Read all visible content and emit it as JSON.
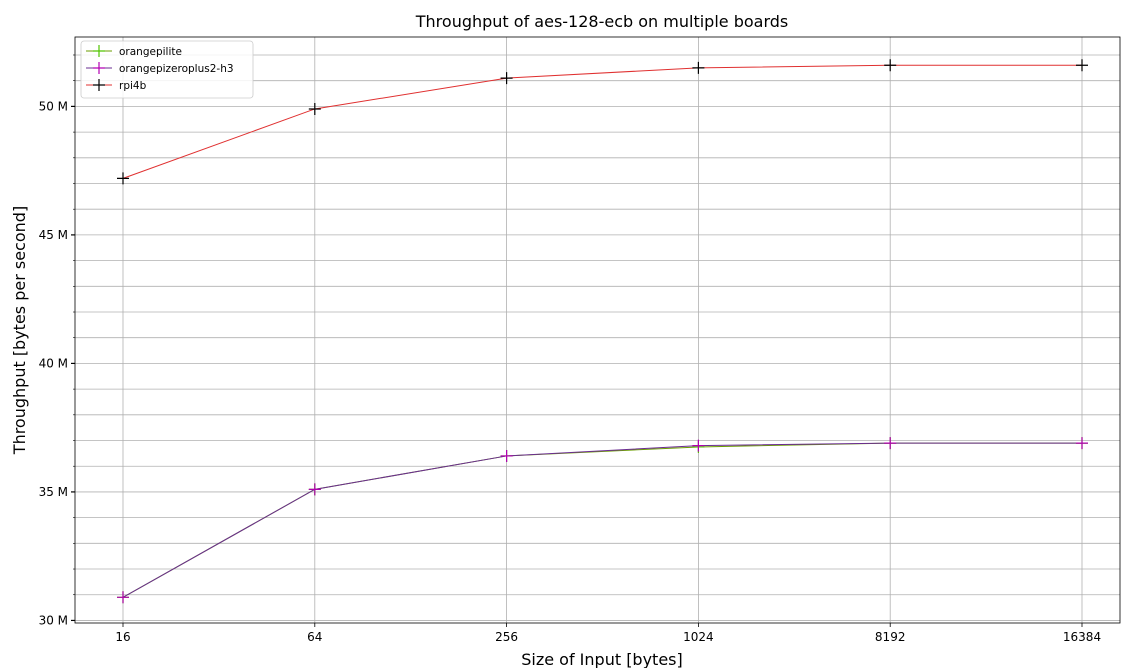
{
  "chart_data": {
    "type": "line",
    "title": "Throughput of aes-128-ecb on multiple boards",
    "xlabel": "Size of Input [bytes]",
    "ylabel": "Throughput [bytes per second]",
    "categories": [
      "16",
      "64",
      "256",
      "1024",
      "8192",
      "16384"
    ],
    "ylim": [
      29900000,
      52700000
    ],
    "yticks": [
      30000000,
      35000000,
      40000000,
      45000000,
      50000000
    ],
    "ytick_labels": [
      "30 M",
      "35 M",
      "40 M",
      "45 M",
      "50 M"
    ],
    "yminor_step": 1000000,
    "grid": true,
    "legend_position": "top-left",
    "series": [
      {
        "name": "orangepilite",
        "color": "#6b9e00",
        "marker_color": "#52c400",
        "values": [
          30900000,
          35100000,
          36400000,
          36750000,
          36900000,
          36900000
        ]
      },
      {
        "name": "orangepizeroplus2-h3",
        "color": "#6a2c91",
        "marker_color": "#b300b3",
        "values": [
          30900000,
          35100000,
          36400000,
          36800000,
          36900000,
          36900000
        ]
      },
      {
        "name": "rpi4b",
        "color": "#e03030",
        "marker_color": "#000000",
        "values": [
          47200000,
          49900000,
          51100000,
          51500000,
          51600000,
          51600000
        ]
      }
    ]
  }
}
